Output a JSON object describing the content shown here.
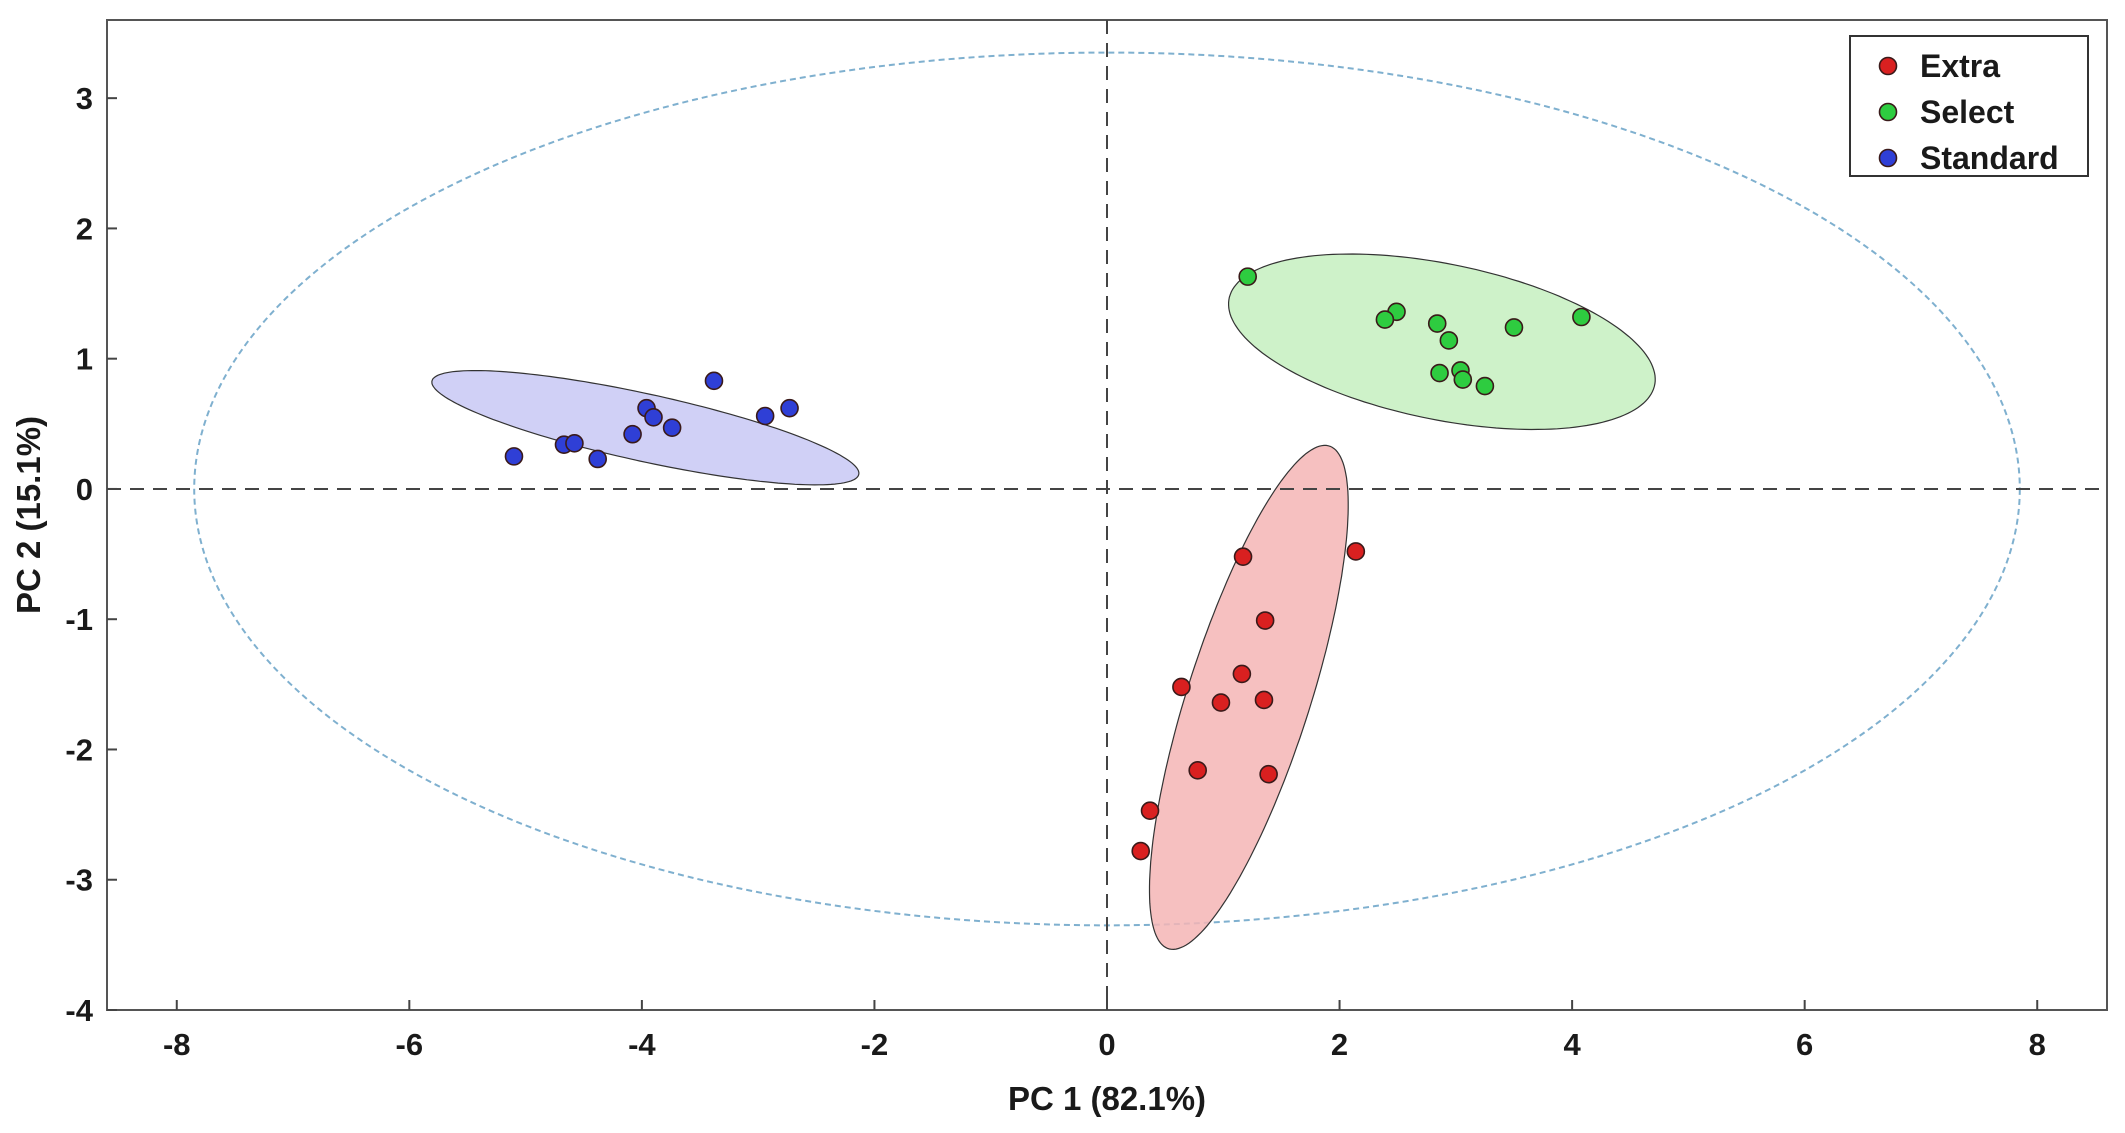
{
  "chart_data": {
    "type": "scatter",
    "title": "",
    "xlabel": "PC 1 (82.1%)",
    "ylabel": "PC 2 (15.1%)",
    "xlim": [
      -8.6,
      8.6
    ],
    "ylim": [
      -4,
      3.6
    ],
    "xticks": [
      -8,
      -6,
      -4,
      -2,
      0,
      2,
      4,
      6,
      8
    ],
    "yticks": [
      -4,
      -3,
      -2,
      -1,
      0,
      1,
      2,
      3
    ],
    "grid": false,
    "legend_position": "top-right",
    "reference_lines": {
      "x": 0,
      "y": 0,
      "style": "dashed"
    },
    "confidence_region": {
      "label": "Hotelling T2 ellipse",
      "center": [
        0,
        0
      ],
      "radius_x": 7.85,
      "radius_y": 3.35,
      "color": "#7fb0cf"
    },
    "series": [
      {
        "name": "Extra",
        "color": "#d92020",
        "fill": "#f5b5b5",
        "ellipse": {
          "center": [
            1.22,
            -1.6
          ],
          "radius_x": 2.05,
          "radius_y": 0.52,
          "angle_deg": 70
        },
        "points": [
          [
            1.17,
            -0.52
          ],
          [
            2.14,
            -0.48
          ],
          [
            1.36,
            -1.01
          ],
          [
            1.16,
            -1.42
          ],
          [
            0.64,
            -1.52
          ],
          [
            0.98,
            -1.64
          ],
          [
            1.35,
            -1.62
          ],
          [
            0.78,
            -2.16
          ],
          [
            1.39,
            -2.19
          ],
          [
            0.37,
            -2.47
          ],
          [
            0.29,
            -2.78
          ]
        ]
      },
      {
        "name": "Select",
        "color": "#2ecc40",
        "fill": "#c6f0c0",
        "ellipse": {
          "center": [
            2.88,
            1.13
          ],
          "radius_x": 1.86,
          "radius_y": 0.6,
          "angle_deg": -10
        },
        "points": [
          [
            1.21,
            1.63
          ],
          [
            2.49,
            1.36
          ],
          [
            2.39,
            1.3
          ],
          [
            2.84,
            1.27
          ],
          [
            2.94,
            1.14
          ],
          [
            3.5,
            1.24
          ],
          [
            4.08,
            1.32
          ],
          [
            2.86,
            0.89
          ],
          [
            3.04,
            0.91
          ],
          [
            3.06,
            0.84
          ],
          [
            3.25,
            0.79
          ]
        ]
      },
      {
        "name": "Standard",
        "color": "#2f3fd6",
        "fill": "#c8c8f4",
        "ellipse": {
          "center": [
            -3.97,
            0.47
          ],
          "radius_x": 1.87,
          "radius_y": 0.26,
          "angle_deg": -11
        },
        "points": [
          [
            -5.1,
            0.25
          ],
          [
            -4.67,
            0.34
          ],
          [
            -4.58,
            0.35
          ],
          [
            -4.38,
            0.23
          ],
          [
            -4.08,
            0.42
          ],
          [
            -3.96,
            0.62
          ],
          [
            -3.9,
            0.55
          ],
          [
            -3.74,
            0.47
          ],
          [
            -3.38,
            0.83
          ],
          [
            -2.94,
            0.56
          ],
          [
            -2.73,
            0.62
          ]
        ]
      }
    ]
  }
}
